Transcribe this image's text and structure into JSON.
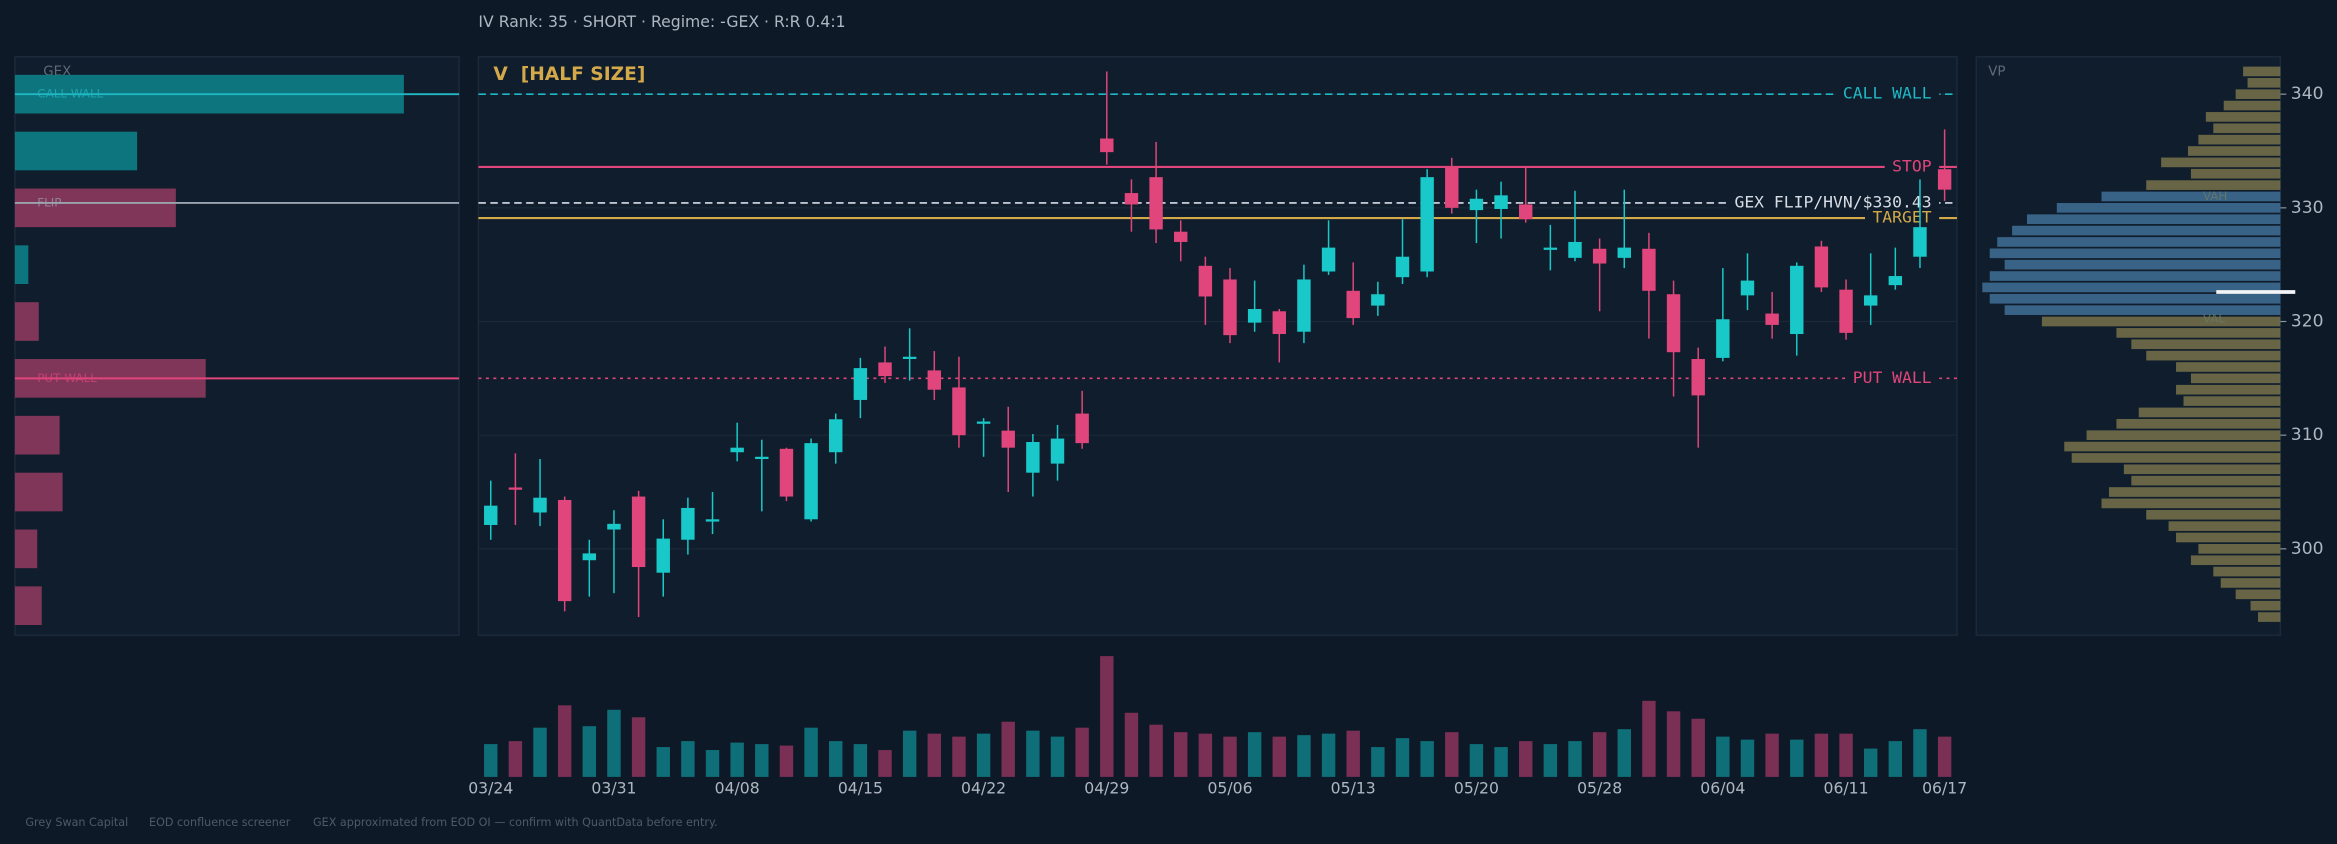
{
  "header": "IV Rank: 35  ·  SHORT  ·  Regime: -GEX  ·  R:R 0.4:1",
  "footer": [
    "Grey Swan Capital",
    "EOD confluence screener",
    "GEX approximated from EOD OI — confirm with QuantData before entry."
  ],
  "chart_data": [
    {
      "type": "barh",
      "title": "GEX",
      "y": [
        340,
        335,
        330,
        325,
        320,
        315,
        310,
        305,
        300,
        295
      ],
      "values": [
        261,
        82,
        -108,
        9,
        -16,
        -128,
        -30,
        -32,
        -15,
        -18
      ],
      "color_positive": "#0e7a82",
      "color_negative": "#86385c",
      "markers": [
        {
          "label": "CALL WALL",
          "value": 340,
          "color": "#1fb8c4"
        },
        {
          "label": "FLIP",
          "value": 330.43,
          "color": "#9aa3ae"
        },
        {
          "label": "PUT WALL",
          "value": 315,
          "color": "#e0457b"
        }
      ]
    },
    {
      "type": "candlestick",
      "title": "V  [HALF SIZE]",
      "categories": [
        "03/24",
        null,
        null,
        null,
        null,
        "03/31",
        null,
        null,
        null,
        null,
        "04/08",
        null,
        null,
        null,
        null,
        "04/15",
        null,
        null,
        null,
        null,
        "04/22",
        null,
        null,
        null,
        null,
        "04/29",
        null,
        null,
        null,
        null,
        "05/06",
        null,
        null,
        null,
        null,
        "05/13",
        null,
        null,
        null,
        null,
        "05/20",
        null,
        null,
        null,
        null,
        "05/28",
        null,
        null,
        null,
        null,
        "06/04",
        null,
        null,
        null,
        null,
        "06/11",
        null,
        null,
        null,
        "06/17"
      ],
      "open": [
        302.1,
        305.4,
        303.2,
        304.3,
        299.0,
        301.7,
        304.6,
        297.9,
        300.8,
        302.4,
        308.5,
        308.0,
        308.8,
        302.6,
        308.5,
        313.1,
        316.4,
        316.8,
        315.7,
        314.2,
        311.1,
        310.4,
        306.7,
        307.5,
        311.9,
        336.1,
        331.3,
        332.7,
        327.9,
        324.9,
        323.7,
        319.9,
        320.9,
        319.1,
        324.4,
        322.7,
        321.4,
        323.9,
        324.4,
        333.6,
        329.8,
        329.9,
        330.3,
        326.4,
        325.6,
        326.4,
        325.6,
        326.4,
        322.4,
        316.7,
        316.8,
        322.3,
        320.7,
        318.9,
        326.6,
        322.8,
        321.4,
        323.2,
        325.7,
        333.4
      ],
      "high": [
        306.0,
        308.4,
        307.9,
        304.6,
        300.8,
        303.4,
        305.1,
        302.6,
        304.5,
        305.0,
        311.1,
        309.6,
        308.9,
        309.7,
        311.9,
        316.8,
        317.8,
        319.4,
        317.4,
        316.9,
        311.5,
        312.5,
        310.1,
        310.9,
        313.9,
        342.0,
        332.5,
        335.8,
        328.9,
        325.7,
        324.7,
        323.6,
        321.1,
        325.0,
        328.9,
        325.2,
        323.5,
        329.0,
        333.4,
        334.4,
        331.6,
        332.3,
        333.6,
        328.5,
        331.5,
        327.3,
        331.6,
        327.8,
        323.6,
        317.7,
        324.7,
        326.0,
        322.6,
        325.2,
        327.1,
        323.7,
        326.0,
        326.5,
        332.5,
        336.9
      ],
      "low": [
        300.8,
        302.1,
        302.0,
        294.5,
        295.8,
        296.1,
        294.0,
        295.8,
        299.5,
        301.3,
        307.7,
        303.3,
        304.2,
        302.4,
        307.5,
        311.5,
        314.6,
        314.8,
        313.1,
        308.9,
        308.1,
        305.0,
        304.6,
        306.0,
        308.8,
        333.8,
        327.9,
        326.9,
        325.3,
        319.7,
        318.1,
        319.1,
        316.4,
        318.1,
        324.1,
        319.7,
        320.5,
        323.3,
        323.9,
        329.5,
        326.9,
        327.3,
        328.7,
        324.5,
        325.3,
        320.9,
        324.7,
        318.5,
        313.4,
        308.9,
        316.5,
        321.0,
        318.5,
        317.0,
        322.6,
        318.4,
        319.7,
        322.8,
        324.7,
        330.6
      ],
      "close": [
        303.8,
        305.2,
        304.5,
        295.4,
        299.6,
        302.2,
        298.4,
        300.9,
        303.6,
        302.6,
        308.9,
        308.1,
        304.6,
        309.3,
        311.4,
        315.9,
        315.2,
        316.9,
        314.0,
        310.0,
        311.2,
        308.9,
        309.4,
        309.7,
        309.3,
        334.9,
        330.3,
        328.1,
        327.0,
        322.2,
        318.8,
        321.1,
        318.9,
        323.7,
        326.5,
        320.3,
        322.4,
        325.7,
        332.7,
        330.0,
        330.8,
        331.1,
        329.0,
        326.5,
        327.0,
        325.1,
        326.5,
        322.7,
        317.3,
        313.5,
        320.2,
        323.6,
        319.7,
        324.9,
        323.0,
        319.0,
        322.3,
        324.0,
        328.3,
        331.6
      ],
      "color_up": "#19c9c9",
      "color_down": "#e0457b",
      "ylim": [
        292.4,
        343.3
      ],
      "yticks": [
        300,
        310,
        320,
        330,
        340
      ],
      "grid": true,
      "levels": [
        {
          "label": "CALL WALL",
          "value": 340,
          "color": "#1fb8c4",
          "style": "dashed"
        },
        {
          "label": "STOP",
          "value": 333.6,
          "color": "#e0457b",
          "style": "solid"
        },
        {
          "label": "GEX FLIP/HVN/$330.43",
          "value": 330.43,
          "color": "#d8dde6",
          "style": "dashed"
        },
        {
          "label": "TARGET",
          "value": 329.1,
          "color": "#d4a94a",
          "style": "solid"
        },
        {
          "label": "PUT WALL",
          "value": 315,
          "color": "#e0457b",
          "style": "dotted"
        }
      ]
    },
    {
      "type": "volume",
      "values": [
        22,
        24,
        33,
        48,
        34,
        45,
        40,
        20,
        24,
        18,
        23,
        22,
        21,
        33,
        24,
        22,
        18,
        31,
        29,
        27,
        29,
        37,
        31,
        27,
        33,
        81,
        43,
        35,
        30,
        29,
        27,
        30,
        27,
        28,
        29,
        31,
        20,
        26,
        24,
        30,
        22,
        20,
        24,
        22,
        24,
        30,
        32,
        51,
        44,
        39,
        27,
        25,
        29,
        25,
        29,
        29,
        19,
        24,
        32,
        27
      ],
      "color_up": "#0e6f78",
      "color_down": "#7a2f55"
    },
    {
      "type": "barh",
      "title": "VP",
      "y": [
        342,
        341,
        340,
        339,
        338,
        337,
        336,
        335,
        334,
        333,
        332,
        331,
        330,
        329,
        328,
        327,
        326,
        325,
        324,
        323,
        322,
        321,
        320,
        319,
        318,
        317,
        316,
        315,
        314,
        313,
        312,
        311,
        310,
        309,
        308,
        307,
        306,
        305,
        304,
        303,
        302,
        301,
        300,
        299,
        298,
        297,
        296,
        295,
        294
      ],
      "values": [
        25,
        22,
        30,
        38,
        50,
        45,
        55,
        62,
        80,
        60,
        90,
        120,
        150,
        170,
        180,
        190,
        195,
        185,
        195,
        200,
        195,
        185,
        160,
        110,
        100,
        90,
        70,
        60,
        70,
        65,
        95,
        110,
        130,
        145,
        140,
        105,
        100,
        115,
        120,
        90,
        75,
        70,
        55,
        60,
        45,
        40,
        30,
        20,
        15
      ],
      "color_value_area": "#3f6f97",
      "color_outside": "#77724a",
      "annotations": [
        {
          "label": "VAH",
          "value": 331
        },
        {
          "label": "VAL",
          "value": 320.2
        }
      ],
      "poc": 322.6
    }
  ]
}
